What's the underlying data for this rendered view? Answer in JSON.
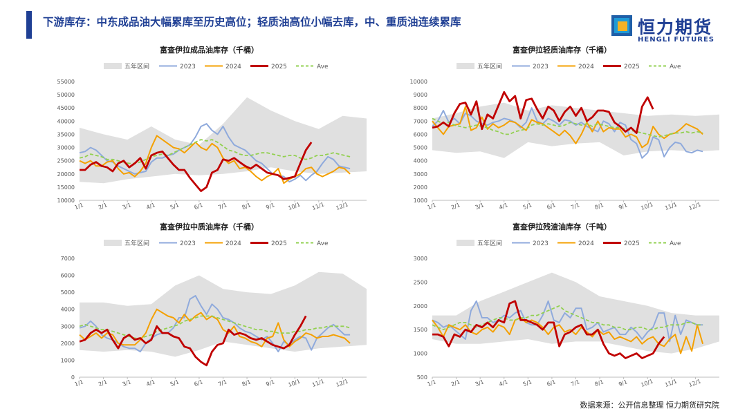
{
  "header": {
    "title": "下游库存：中东成品油大幅累库至历史高位；轻质油高位小幅去库，中、重质油连续累库",
    "logo_text": "恒力期货",
    "logo_sub": "HENGLI FUTURES"
  },
  "footer": {
    "source": "数据来源：公开信息整理  恒力期货研究院"
  },
  "colors": {
    "band": "#e0e0e0",
    "y2023": "#8faadc",
    "y2024": "#f4a000",
    "y2025": "#c00000",
    "ave": "#92d050",
    "title": "#1f3f94"
  },
  "legend": [
    {
      "key": "band",
      "label": "五年区间"
    },
    {
      "key": "y2023",
      "label": "2023"
    },
    {
      "key": "y2024",
      "label": "2024"
    },
    {
      "key": "y2025",
      "label": "2025"
    },
    {
      "key": "ave",
      "label": "Ave"
    }
  ],
  "chart_data": [
    {
      "type": "line",
      "title": "富查伊拉成品油库存（千桶）",
      "unit": "千桶",
      "ylim": [
        10000,
        55000
      ],
      "yticks": [
        10000,
        15000,
        20000,
        25000,
        30000,
        35000,
        40000,
        45000,
        50000,
        55000
      ],
      "xticks": [
        "1/1",
        "2/1",
        "3/1",
        "4/1",
        "5/1",
        "6/1",
        "7/1",
        "8/1",
        "9/1",
        "10/1",
        "11/1",
        "12/1"
      ],
      "band_low": [
        17000,
        16500,
        18000,
        19000,
        20000,
        19500,
        20000,
        21000,
        22500,
        21000,
        20000,
        20500,
        21000
      ],
      "band_high": [
        37500,
        35000,
        33000,
        38000,
        33000,
        31000,
        39000,
        49000,
        44000,
        40000,
        37000,
        42000,
        41000
      ],
      "series": {
        "y2023": [
          28000,
          28500,
          30000,
          29000,
          27000,
          25000,
          24500,
          23000,
          22000,
          21000,
          20000,
          20500,
          21000,
          24500,
          26000,
          26000,
          27000,
          27500,
          29000,
          30000,
          31000,
          34000,
          38000,
          39000,
          36500,
          35000,
          38000,
          34000,
          31000,
          30000,
          29000,
          27000,
          25000,
          24000,
          22000,
          20000,
          19500,
          19000,
          17000,
          18000,
          19500,
          17500,
          19500,
          21000,
          24000,
          26500,
          25500,
          23000,
          22500,
          22000
        ],
        "y2024": [
          25000,
          24000,
          25000,
          23000,
          23000,
          24500,
          25000,
          22000,
          20000,
          20500,
          19000,
          21000,
          24000,
          30000,
          34500,
          33000,
          31500,
          30000,
          29500,
          28000,
          30000,
          32000,
          30000,
          29000,
          31500,
          30000,
          26000,
          24000,
          25000,
          22000,
          22500,
          21000,
          19000,
          17500,
          19000,
          20000,
          22000,
          16500,
          18000,
          19000,
          20000,
          22000,
          22500,
          20000,
          19000,
          20000,
          21000,
          22500,
          22000,
          20000
        ],
        "y2025": [
          21500,
          21500,
          23500,
          24500,
          23000,
          22500,
          21000,
          24000,
          25000,
          22500,
          24000,
          26000,
          22000,
          27000,
          28000,
          28500,
          26000,
          23500,
          21500,
          21500,
          18500,
          16000,
          13500,
          15000,
          20500,
          21500,
          25500,
          25000,
          26000,
          24500,
          23000,
          22000,
          23500,
          22000,
          20500,
          20000,
          19500,
          18000,
          18500,
          19000,
          24000,
          29000,
          32000
        ],
        "ave": [
          26000,
          26500,
          27500,
          27000,
          26500,
          25500,
          25500,
          25000,
          24500,
          24000,
          24000,
          24500,
          25500,
          26500,
          27000,
          27500,
          27000,
          28000,
          29000,
          30000,
          31000,
          32000,
          33000,
          32500,
          33000,
          32000,
          30500,
          29000,
          28500,
          27500,
          27000,
          27000,
          27500,
          28000,
          28000,
          27500,
          27000,
          26500,
          27000,
          27000,
          26000,
          25500,
          26000,
          27000,
          27000,
          27500,
          28000,
          27500,
          27000,
          26500
        ]
      }
    },
    {
      "type": "line",
      "title": "富查伊拉轻质油库存（千桶）",
      "unit": "千桶",
      "ylim": [
        1000,
        10000
      ],
      "yticks": [
        1000,
        2000,
        3000,
        4000,
        5000,
        6000,
        7000,
        8000,
        9000,
        10000
      ],
      "xticks": [
        "1/1",
        "2/1",
        "3/1",
        "4/1",
        "5/1",
        "6/1",
        "7/1",
        "8/1",
        "9/1",
        "10/1",
        "11/1",
        "12/1"
      ],
      "band_low": [
        4800,
        4600,
        4700,
        4200,
        5400,
        5100,
        5300,
        5400,
        4400,
        4700,
        4800,
        4700,
        4800
      ],
      "band_high": [
        7200,
        7600,
        8100,
        8400,
        7800,
        8200,
        8000,
        7800,
        7600,
        7400,
        7500,
        7400,
        7500
      ],
      "series": {
        "y2023": [
          6600,
          7000,
          7800,
          6900,
          7200,
          6800,
          7600,
          7400,
          7000,
          6800,
          6700,
          6900,
          7000,
          7200,
          7100,
          6900,
          6500,
          6900,
          8000,
          7000,
          6800,
          7200,
          7000,
          6700,
          7100,
          7000,
          6700,
          6900,
          6600,
          6400,
          6200,
          7000,
          6800,
          6200,
          6900,
          6700,
          5600,
          5300,
          4200,
          4600,
          5800,
          5600,
          4300,
          5000,
          5400,
          5300,
          4700,
          4600,
          4800,
          4700
        ],
        "y2024": [
          7000,
          6500,
          6000,
          6600,
          6700,
          6800,
          8100,
          6300,
          6500,
          7300,
          6400,
          6800,
          6500,
          6700,
          7000,
          6900,
          6600,
          6300,
          7100,
          6900,
          6800,
          6500,
          6200,
          5900,
          6300,
          5900,
          5300,
          6000,
          6900,
          6200,
          7000,
          6200,
          6500,
          6400,
          6400,
          5800,
          6000,
          5800,
          5000,
          5300,
          6600,
          6000,
          5700,
          6000,
          6100,
          6400,
          6800,
          6600,
          6400,
          6000
        ],
        "y2025": [
          6500,
          6600,
          6900,
          6600,
          7600,
          8300,
          8400,
          7500,
          8500,
          6400,
          7500,
          7200,
          8200,
          9200,
          8500,
          8900,
          7200,
          8600,
          8700,
          7900,
          7200,
          8100,
          7800,
          7000,
          7700,
          8100,
          7400,
          8000,
          7000,
          7300,
          7800,
          7800,
          7700,
          6900,
          6600,
          6200,
          6500,
          6100,
          8100,
          8800,
          7900
        ],
        "ave": [
          7200,
          7000,
          6800,
          6900,
          6700,
          6600,
          6500,
          6600,
          6700,
          6600,
          6500,
          6300,
          6200,
          6000,
          6000,
          6200,
          6300,
          6400,
          6700,
          6800,
          6700,
          6800,
          6700,
          6600,
          6700,
          6900,
          6800,
          6700,
          6800,
          6600,
          6800,
          6700,
          6600,
          6500,
          6500,
          6400,
          6300,
          6200,
          6100,
          6000,
          5900,
          5800,
          5900,
          6000,
          6100,
          6100,
          6200,
          6100,
          6200,
          6100
        ]
      }
    },
    {
      "type": "line",
      "title": "富查伊拉中质油库存（千桶）",
      "unit": "千桶",
      "ylim": [
        0,
        7000
      ],
      "yticks": [
        0,
        1000,
        2000,
        3000,
        4000,
        5000,
        6000,
        7000
      ],
      "xticks": [
        "1/1",
        "2/1",
        "3/1",
        "4/1",
        "5/1",
        "6/1",
        "7/1",
        "8/1",
        "9/1",
        "10/1",
        "11/1",
        "12/1"
      ],
      "band_low": [
        1600,
        1500,
        1600,
        1500,
        1200,
        1600,
        2100,
        1900,
        1700,
        1500,
        1700,
        1800,
        1900
      ],
      "band_high": [
        4400,
        4400,
        4200,
        4300,
        5400,
        6000,
        5200,
        5000,
        4900,
        5400,
        6200,
        6100,
        5200
      ],
      "series": {
        "y2023": [
          2900,
          3000,
          3300,
          3000,
          2500,
          2300,
          2200,
          2000,
          1800,
          1700,
          1700,
          1500,
          2000,
          2300,
          2500,
          2600,
          2600,
          2900,
          3500,
          3500,
          4600,
          4800,
          4200,
          3700,
          4300,
          4000,
          3500,
          3400,
          3200,
          2900,
          2700,
          2600,
          2400,
          2200,
          2400,
          2000,
          1500,
          2100,
          1900,
          2200,
          2400,
          2300,
          1600,
          2300,
          2600,
          2900,
          3100,
          2800,
          2500,
          2500
        ],
        "y2024": [
          2500,
          2200,
          2400,
          2600,
          2300,
          2600,
          2500,
          2000,
          1900,
          1900,
          1900,
          2200,
          2600,
          3400,
          4000,
          3800,
          3600,
          3500,
          3200,
          3700,
          3300,
          3600,
          3800,
          3400,
          3600,
          3400,
          2800,
          2600,
          3000,
          2400,
          2300,
          2100,
          2000,
          1800,
          2300,
          2400,
          3200,
          2200,
          1800,
          2100,
          2300,
          2600,
          2500,
          2300,
          2400,
          2400,
          2500,
          2400,
          2300,
          2000
        ],
        "y2025": [
          2100,
          2200,
          2600,
          2800,
          2600,
          2800,
          2200,
          1700,
          2300,
          2500,
          2200,
          2300,
          2000,
          2200,
          3000,
          2600,
          2600,
          2400,
          2300,
          1800,
          1700,
          1200,
          900,
          700,
          1500,
          1900,
          2000,
          2800,
          2500,
          2600,
          2500,
          2300,
          2200,
          2300,
          2100,
          1900,
          1800,
          1700,
          1900,
          2500,
          3000,
          3600
        ],
        "ave": [
          3000,
          3100,
          3000,
          2900,
          2800,
          2800,
          2700,
          2600,
          2500,
          2400,
          2300,
          2300,
          2400,
          2500,
          2700,
          2800,
          2900,
          3000,
          3100,
          3300,
          3400,
          3500,
          3600,
          3600,
          3600,
          3500,
          3400,
          3300,
          3200,
          3100,
          3000,
          2900,
          2800,
          2800,
          2700,
          2700,
          2600,
          2600,
          2600,
          2700,
          2700,
          2800,
          2800,
          2900,
          2900,
          3000,
          3000,
          3000,
          3000,
          2900
        ]
      }
    },
    {
      "type": "line",
      "title": "富查伊拉残渣油库存（千吨）",
      "unit": "千吨",
      "ylim": [
        500,
        3000
      ],
      "yticks": [
        500,
        1000,
        1500,
        2000,
        2500,
        3000
      ],
      "xticks": [
        "1/1",
        "2/1",
        "3/1",
        "4/1",
        "5/1",
        "6/1",
        "7/1",
        "8/1",
        "9/1",
        "10/1",
        "11/1",
        "12/1"
      ],
      "band_low": [
        1300,
        1200,
        1200,
        1250,
        1300,
        1200,
        1250,
        1250,
        1150,
        1050,
        1000,
        1100,
        1250
      ],
      "band_high": [
        1800,
        1800,
        2100,
        2300,
        2500,
        2700,
        2500,
        2200,
        2100,
        2000,
        1850,
        1800,
        1800
      ],
      "series": {
        "y2023": [
          1700,
          1650,
          1550,
          1600,
          1500,
          1400,
          1300,
          1900,
          2100,
          1750,
          1750,
          1650,
          1700,
          1800,
          1750,
          1850,
          1900,
          1650,
          1600,
          1600,
          1800,
          2100,
          1700,
          1650,
          1850,
          1750,
          1950,
          1950,
          1500,
          1550,
          1650,
          1450,
          1500,
          1550,
          1400,
          1400,
          1550,
          1450,
          1300,
          1450,
          1550,
          1850,
          1850,
          1250,
          1800,
          1400,
          1700,
          1650,
          1600,
          1600
        ],
        "y2024": [
          1700,
          1550,
          1350,
          1600,
          1550,
          1500,
          1600,
          1450,
          1400,
          1500,
          1550,
          1450,
          1600,
          1550,
          1400,
          1700,
          1750,
          1650,
          1700,
          1650,
          1550,
          1400,
          1550,
          1600,
          1450,
          1500,
          1400,
          1550,
          1450,
          1350,
          1500,
          1400,
          1450,
          1300,
          1350,
          1300,
          1250,
          1350,
          1200,
          1300,
          1350,
          1200,
          1150,
          1300,
          1400,
          1000,
          1350,
          1050,
          1600,
          1200
        ],
        "y2025": [
          1400,
          1400,
          1350,
          1150,
          1400,
          1350,
          1500,
          1450,
          1600,
          1550,
          1650,
          1550,
          1700,
          1650,
          2050,
          2100,
          1700,
          1700,
          1650,
          1600,
          1500,
          1650,
          1650,
          1150,
          1400,
          1450,
          1550,
          1600,
          1400,
          1400,
          1500,
          1200,
          1000,
          950,
          1000,
          900,
          950,
          1000,
          900,
          950,
          1000,
          1200,
          1350
        ],
        "ave": [
          1600,
          1550,
          1500,
          1550,
          1600,
          1650,
          1650,
          1600,
          1550,
          1600,
          1650,
          1700,
          1750,
          1750,
          1700,
          1700,
          1750,
          1750,
          1800,
          1800,
          1850,
          1900,
          1950,
          2000,
          1900,
          1850,
          1800,
          1750,
          1700,
          1650,
          1650,
          1600,
          1600,
          1550,
          1550,
          1500,
          1500,
          1550,
          1550,
          1500,
          1500,
          1550,
          1550,
          1600,
          1600,
          1600,
          1650,
          1650,
          1600,
          1600
        ]
      }
    }
  ]
}
